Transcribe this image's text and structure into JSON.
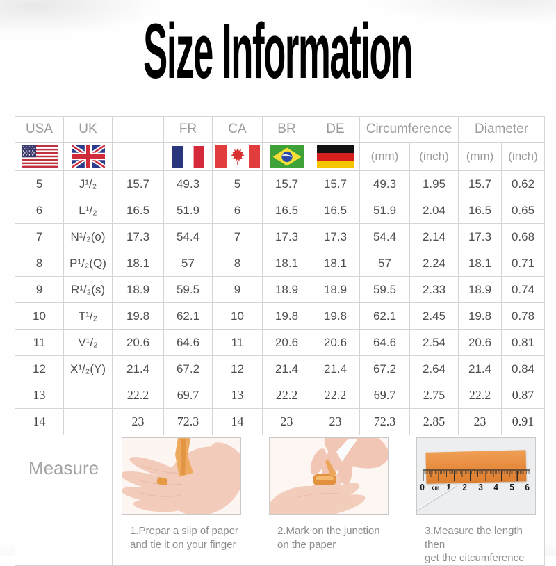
{
  "page": {
    "title": "Size Information"
  },
  "size_table": {
    "header": {
      "columns": [
        "USA",
        "UK",
        "",
        "FR",
        "CA",
        "BR",
        "DE"
      ],
      "circumference_label": "Circumference",
      "diameter_label": "Diameter",
      "unit_mm": "(mm)",
      "unit_inch": "(inch)",
      "flags": [
        "usa",
        "uk",
        "",
        "france",
        "canada",
        "brazil",
        "germany"
      ]
    },
    "rows": [
      [
        "5",
        "J¹/₂",
        "15.7",
        "49.3",
        "5",
        "15.7",
        "15.7",
        "49.3",
        "1.95",
        "15.7",
        "0.62"
      ],
      [
        "6",
        "L¹/₂",
        "16.5",
        "51.9",
        "6",
        "16.5",
        "16.5",
        "51.9",
        "2.04",
        "16.5",
        "0.65"
      ],
      [
        "7",
        "N¹/₂(o)",
        "17.3",
        "54.4",
        "7",
        "17.3",
        "17.3",
        "54.4",
        "2.14",
        "17.3",
        "0.68"
      ],
      [
        "8",
        "P¹/₂(Q)",
        "18.1",
        "57",
        "8",
        "18.1",
        "18.1",
        "57",
        "2.24",
        "18.1",
        "0.71"
      ],
      [
        "9",
        "R¹/₂(s)",
        "18.9",
        "59.5",
        "9",
        "18.9",
        "18.9",
        "59.5",
        "2.33",
        "18.9",
        "0.74"
      ],
      [
        "10",
        "T¹/₂",
        "19.8",
        "62.1",
        "10",
        "19.8",
        "19.8",
        "62.1",
        "2.45",
        "19.8",
        "0.78"
      ],
      [
        "11",
        "V¹/₂",
        "20.6",
        "64.6",
        "11",
        "20.6",
        "20.6",
        "64.6",
        "2.54",
        "20.6",
        "0.81"
      ],
      [
        "12",
        "X¹/₂(Y)",
        "21.4",
        "67.2",
        "12",
        "21.4",
        "21.4",
        "67.2",
        "2.64",
        "21.4",
        "0.84"
      ],
      [
        "13",
        "",
        "22.2",
        "69.7",
        "13",
        "22.2",
        "22.2",
        "69.7",
        "2.75",
        "22.2",
        "0.87"
      ],
      [
        "14",
        "",
        "23",
        "72.3",
        "14",
        "23",
        "23",
        "72.3",
        "2.85",
        "23",
        "0.91"
      ]
    ]
  },
  "measure": {
    "label": "Measure",
    "steps": [
      {
        "caption_line1": "1.Prepar a slip of paper",
        "caption_line2": "and tie it on your finger"
      },
      {
        "caption_line1": "2.Mark on the junction",
        "caption_line2": "on the paper"
      },
      {
        "caption_line1": "3.Measure the length then",
        "caption_line2": "get the citcumference"
      }
    ],
    "ruler_labels": [
      "0",
      "cm",
      "1",
      "2",
      "3",
      "4",
      "5",
      "6"
    ]
  },
  "colors": {
    "title_text": "#000000",
    "header_text": "#9b9b9b",
    "data_text": "#4f4f4f",
    "table_border": "#d5d5d5",
    "caption_text": "#8d8d8d",
    "paper_strip_orange": "#e68a3c"
  }
}
